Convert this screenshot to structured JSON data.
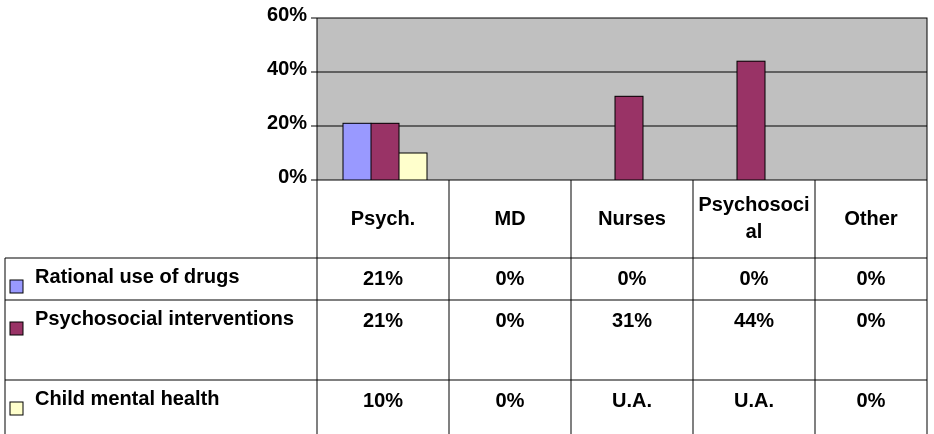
{
  "chart_data": {
    "type": "bar",
    "categories": [
      "Psych.",
      "MD",
      "Nurses",
      "Psychosocial",
      "Other"
    ],
    "series": [
      {
        "name": "Rational use of drugs",
        "color": "#9999ff",
        "values": [
          21,
          0,
          0,
          0,
          0
        ],
        "value_labels": [
          "21%",
          "0%",
          "0%",
          "0%",
          "0%"
        ]
      },
      {
        "name": "Psychosocial interventions",
        "color": "#993366",
        "values": [
          21,
          0,
          31,
          44,
          0
        ],
        "value_labels": [
          "21%",
          "0%",
          "31%",
          "44%",
          "0%"
        ]
      },
      {
        "name": "Child mental health",
        "color": "#ffffcc",
        "values": [
          10,
          0,
          null,
          null,
          0
        ],
        "value_labels": [
          "10%",
          "0%",
          "U.A.",
          "U.A.",
          "0%"
        ]
      }
    ],
    "ylim": [
      0,
      60
    ],
    "yticks": [
      {
        "value": 0,
        "label": "0%"
      },
      {
        "value": 20,
        "label": "20%"
      },
      {
        "value": 40,
        "label": "40%"
      },
      {
        "value": 60,
        "label": "60%"
      }
    ],
    "grid": true,
    "plot_background": "#c0c0c0"
  }
}
